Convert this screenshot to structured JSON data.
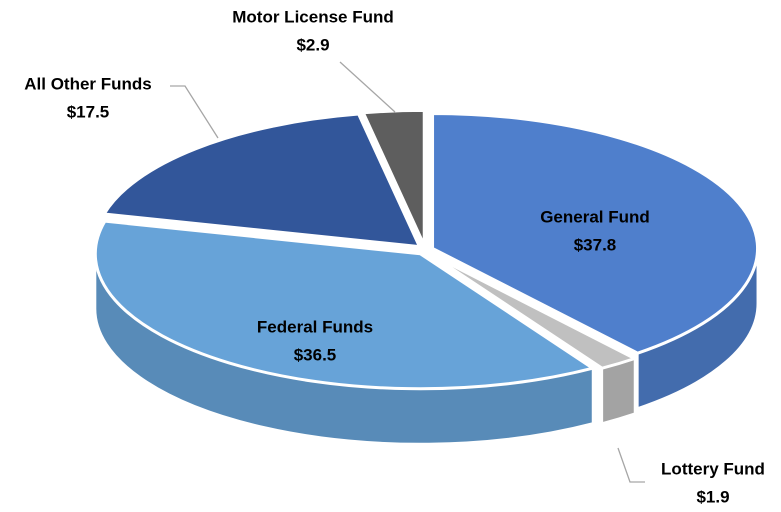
{
  "chart_data": {
    "type": "pie",
    "categories": [
      "General Fund",
      "Lottery Fund",
      "Federal Funds",
      "All Other Funds",
      "Motor License Fund"
    ],
    "values": [
      37.8,
      1.9,
      36.5,
      17.5,
      2.9
    ],
    "value_labels": [
      "$37.8",
      "$1.9",
      "$36.5",
      "$17.5",
      "$2.9"
    ],
    "colors": [
      "#4f7fcc",
      "#c0c0c0",
      "#67a3d8",
      "#32569a",
      "#5e5e5e"
    ]
  }
}
